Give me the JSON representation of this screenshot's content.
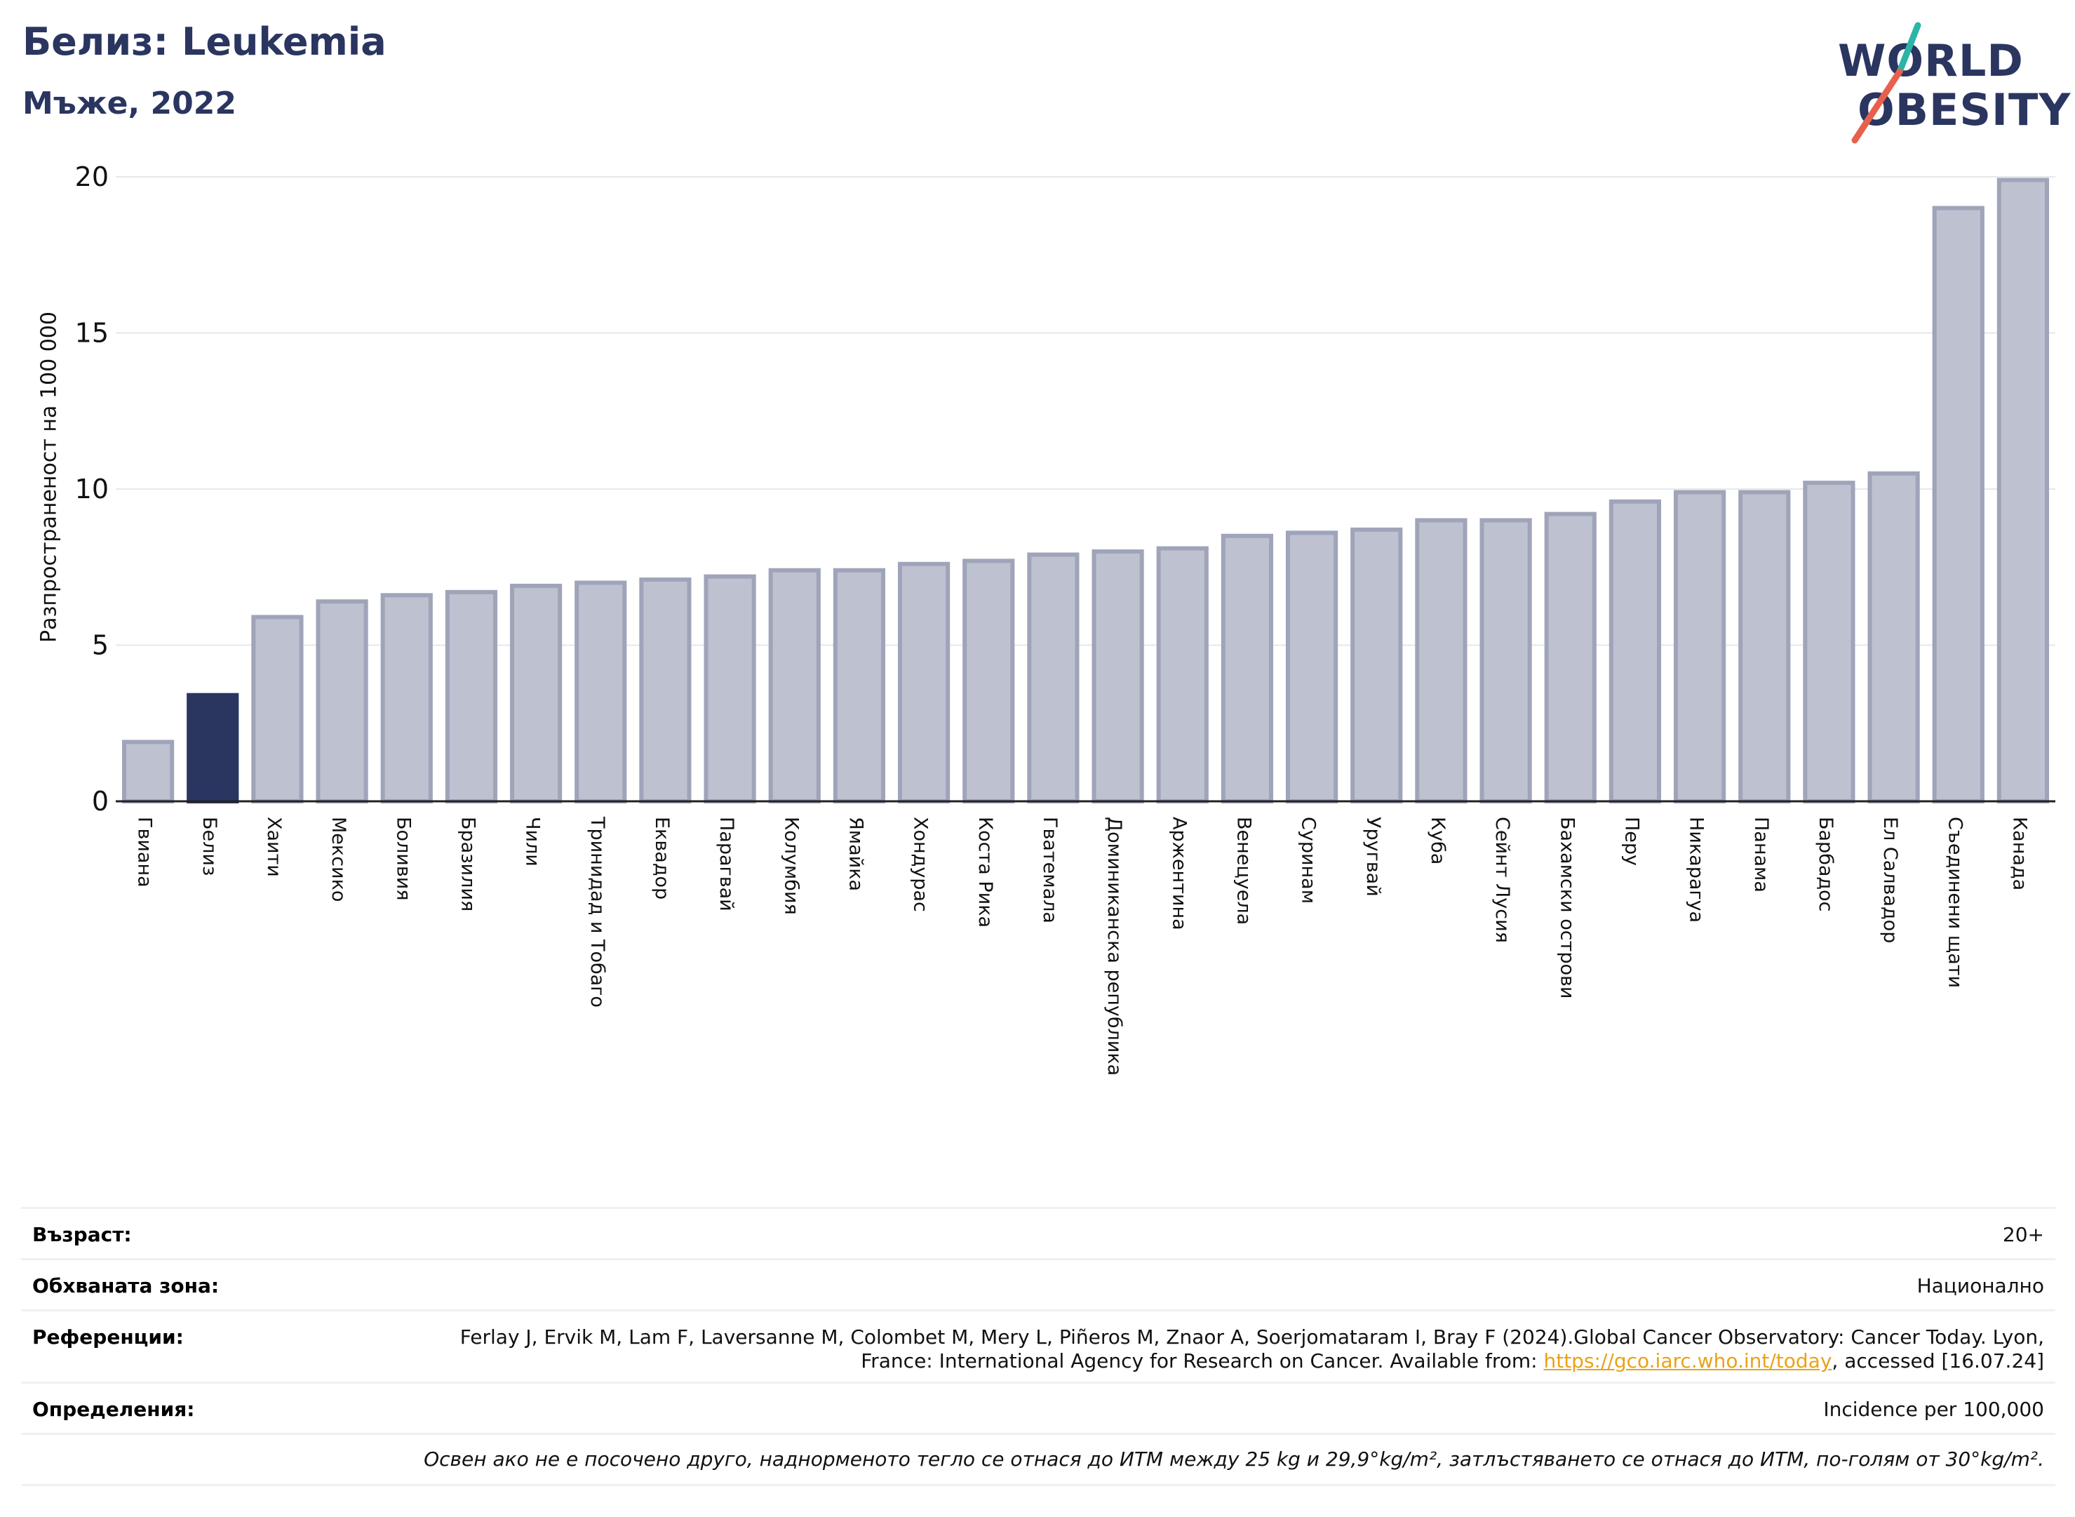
{
  "header": {
    "title": "Белиз: Leukemia",
    "subtitle": "Мъже, 2022"
  },
  "logo": {
    "line1": "WORLD",
    "line2": "OBESITY",
    "colors": {
      "navy": "#2a3560",
      "teal": "#2ab5a8",
      "coral": "#e8604c"
    }
  },
  "colors": {
    "bar_default": "#bec1cf",
    "bar_default_edge": "#9fa4b9",
    "bar_highlight": "#2a3560",
    "grid": "#e6e7ec",
    "axis": "#222222"
  },
  "chart_data": {
    "type": "bar",
    "ylabel": "Разпространеност  на 100 000",
    "ylim": [
      0,
      20
    ],
    "yticks": [
      0,
      5,
      10,
      15,
      20
    ],
    "grid": true,
    "highlight": "Белиз",
    "categories": [
      "Гвиана",
      "Белиз",
      "Хаити",
      "Мексико",
      "Боливия",
      "Бразилия",
      "Чили",
      "Тринидад и Тобаго",
      "Еквадор",
      "Парагвай",
      "Колумбия",
      "Ямайка",
      "Хондурас",
      "Коста Рика",
      "Гватемала",
      "Доминиканска република",
      "Аржентина",
      "Венецуела",
      "Суринам",
      "Уругвай",
      "Куба",
      "Сейнт Лусия",
      "Бахамски острови",
      "Перу",
      "Никарагуа",
      "Панама",
      "Барбадос",
      "Ел Салвадор",
      "Съединени щати",
      "Канада"
    ],
    "values": [
      1.9,
      3.4,
      5.9,
      6.4,
      6.6,
      6.7,
      6.9,
      7.0,
      7.1,
      7.2,
      7.4,
      7.4,
      7.6,
      7.7,
      7.9,
      8.0,
      8.1,
      8.5,
      8.6,
      8.7,
      9.0,
      9.0,
      9.2,
      9.6,
      9.9,
      9.9,
      10.2,
      10.5,
      19.0,
      19.9
    ]
  },
  "meta": {
    "age_label": "Възраст:",
    "age_value": "20+",
    "coverage_label": "Обхваната зона:",
    "coverage_value": "Национално",
    "references_label": "Референции:",
    "references_text_1": "Ferlay J, Ervik M, Lam F, Laversanne M, Colombet M, Mery L, Piñeros M, Znaor A, Soerjomataram I, Bray F (2024).Global Cancer Observatory: Cancer Today. Lyon, France: International Agency for Research on Cancer. Available from: ",
    "references_link": "https://gco.iarc.who.int/today",
    "references_text_2": ", accessed [16.07.24]",
    "definitions_label": "Определения:",
    "definitions_value": "Incidence per 100,000",
    "footnote": "Освен ако не е посочено друго, наднорменото тегло се отнася до ИТМ между 25 kg и 29,9°kg/m², затлъстяването се отнася до ИТМ, по-голям от 30°kg/m²."
  }
}
